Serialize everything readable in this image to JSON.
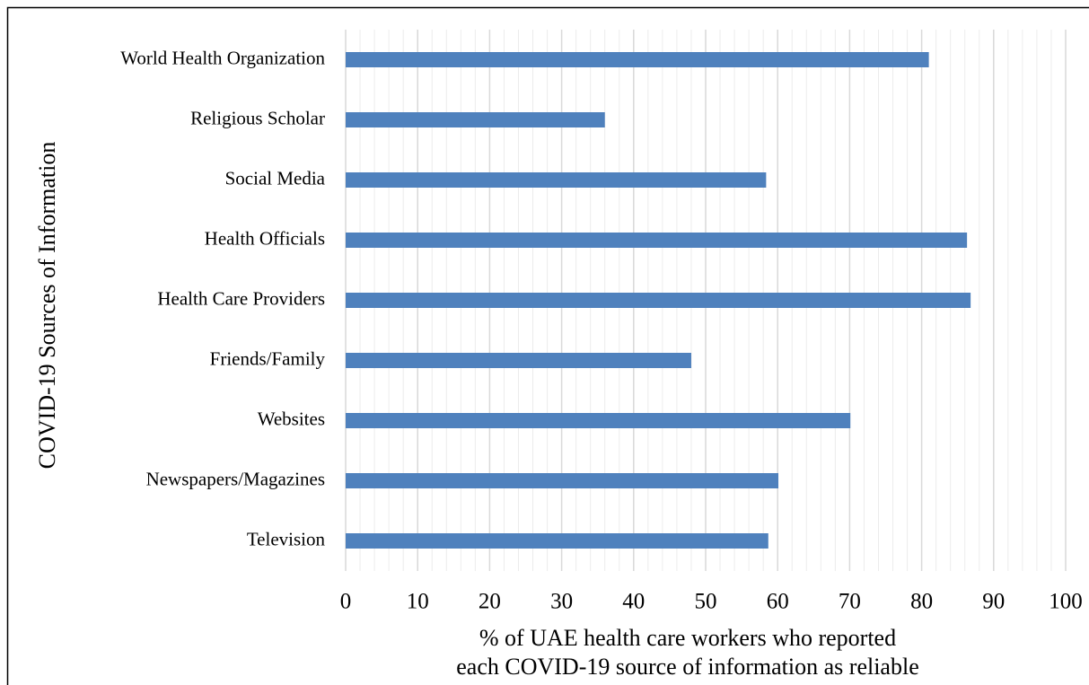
{
  "chart_data": {
    "type": "bar",
    "orientation": "horizontal",
    "categories": [
      "World Health Organization",
      "Religious Scholar",
      "Social Media",
      "Health Officials",
      "Health Care Providers",
      "Friends/Family",
      "Websites",
      "Newspapers/Magazines",
      "Television"
    ],
    "values": [
      81,
      36,
      58.4,
      86.3,
      86.8,
      48,
      70.1,
      60.1,
      58.7
    ],
    "color": "#4f81bd",
    "ylabel": "COVID-19 Sources of Information",
    "xlabel": [
      "% of UAE health care workers who reported",
      "each COVID-19 source of information as reliable"
    ],
    "xlim": [
      0,
      100
    ],
    "xticks": [
      0,
      10,
      20,
      30,
      40,
      50,
      60,
      70,
      80,
      90,
      100
    ],
    "xminorticks": [
      2,
      4,
      6,
      8,
      12,
      14,
      16,
      18,
      22,
      24,
      26,
      28,
      32,
      34,
      36,
      38,
      42,
      44,
      46,
      48,
      52,
      54,
      56,
      58,
      62,
      64,
      66,
      68,
      72,
      74,
      76,
      78,
      82,
      84,
      86,
      88,
      92,
      94,
      96,
      98
    ],
    "grid": true
  }
}
